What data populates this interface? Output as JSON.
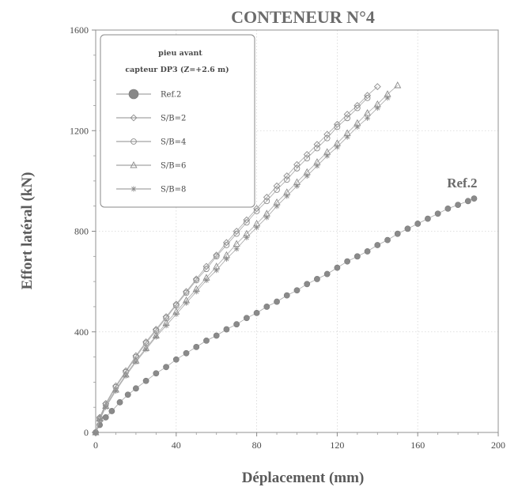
{
  "chart_data": {
    "type": "scatter",
    "title": "CONTENEUR N°4",
    "xlabel": "Déplacement (mm)",
    "ylabel": "Effort latéral (kN)",
    "xlim": [
      0,
      200
    ],
    "ylim": [
      0,
      1600
    ],
    "xticks": [
      0,
      40,
      80,
      120,
      160,
      200
    ],
    "yticks": [
      0,
      400,
      800,
      1200,
      1600
    ],
    "grid": true,
    "legend": {
      "placement": "top-left",
      "header_line1": "pieu avant",
      "header_line2": "capteur DP3 (Z=+2.6 m)"
    },
    "annotation": {
      "text": "Ref.2",
      "x": 188,
      "y": 930
    },
    "series": [
      {
        "name": "Ref.2",
        "marker": "filled-circle",
        "x": [
          0,
          2,
          5,
          8,
          12,
          16,
          20,
          25,
          30,
          35,
          40,
          45,
          50,
          55,
          60,
          65,
          70,
          75,
          80,
          85,
          90,
          95,
          100,
          105,
          110,
          115,
          120,
          125,
          130,
          135,
          140,
          145,
          150,
          155,
          160,
          165,
          170,
          175,
          180,
          185,
          188
        ],
        "y": [
          0,
          30,
          60,
          85,
          120,
          150,
          175,
          205,
          235,
          260,
          290,
          315,
          340,
          365,
          385,
          410,
          430,
          455,
          475,
          500,
          520,
          545,
          565,
          590,
          610,
          630,
          655,
          680,
          700,
          720,
          745,
          765,
          790,
          810,
          830,
          850,
          870,
          890,
          905,
          920,
          930
        ]
      },
      {
        "name": "S/B=2",
        "marker": "open-diamond",
        "x": [
          0,
          2,
          5,
          10,
          15,
          20,
          25,
          30,
          35,
          40,
          45,
          50,
          55,
          60,
          65,
          70,
          75,
          80,
          85,
          90,
          95,
          100,
          105,
          110,
          115,
          120,
          125,
          130,
          135,
          140
        ],
        "y": [
          0,
          60,
          115,
          185,
          245,
          305,
          360,
          410,
          460,
          510,
          560,
          610,
          660,
          705,
          755,
          800,
          845,
          890,
          935,
          980,
          1020,
          1065,
          1105,
          1145,
          1185,
          1225,
          1265,
          1300,
          1340,
          1375
        ]
      },
      {
        "name": "S/B=4",
        "marker": "open-circle",
        "x": [
          0,
          2,
          5,
          10,
          15,
          20,
          25,
          30,
          35,
          40,
          45,
          50,
          55,
          60,
          65,
          70,
          75,
          80,
          85,
          90,
          95,
          100,
          105,
          110,
          115,
          120,
          125,
          130,
          135
        ],
        "y": [
          0,
          55,
          110,
          180,
          240,
          300,
          355,
          405,
          455,
          505,
          555,
          605,
          650,
          700,
          745,
          790,
          835,
          880,
          920,
          965,
          1005,
          1050,
          1090,
          1130,
          1170,
          1215,
          1250,
          1290,
          1330
        ]
      },
      {
        "name": "S/B=6",
        "marker": "open-triangle",
        "x": [
          0,
          2,
          5,
          10,
          15,
          20,
          25,
          30,
          35,
          40,
          45,
          50,
          55,
          60,
          65,
          70,
          75,
          80,
          85,
          90,
          95,
          100,
          105,
          110,
          115,
          120,
          125,
          130,
          135,
          140,
          145,
          150
        ],
        "y": [
          0,
          55,
          105,
          170,
          230,
          285,
          335,
          385,
          435,
          480,
          525,
          570,
          615,
          660,
          705,
          750,
          790,
          830,
          870,
          915,
          955,
          995,
          1035,
          1075,
          1115,
          1150,
          1190,
          1230,
          1270,
          1305,
          1345,
          1380
        ]
      },
      {
        "name": "S/B=8",
        "marker": "asterisk",
        "x": [
          0,
          2,
          5,
          10,
          15,
          20,
          25,
          30,
          35,
          40,
          45,
          50,
          55,
          60,
          65,
          70,
          75,
          80,
          85,
          90,
          95,
          100,
          105,
          110,
          115,
          120,
          125,
          130,
          135,
          140,
          145
        ],
        "y": [
          0,
          50,
          100,
          165,
          225,
          280,
          330,
          380,
          425,
          470,
          515,
          560,
          605,
          645,
          690,
          730,
          775,
          815,
          855,
          900,
          940,
          980,
          1020,
          1060,
          1100,
          1135,
          1175,
          1215,
          1250,
          1290,
          1330
        ]
      }
    ]
  }
}
